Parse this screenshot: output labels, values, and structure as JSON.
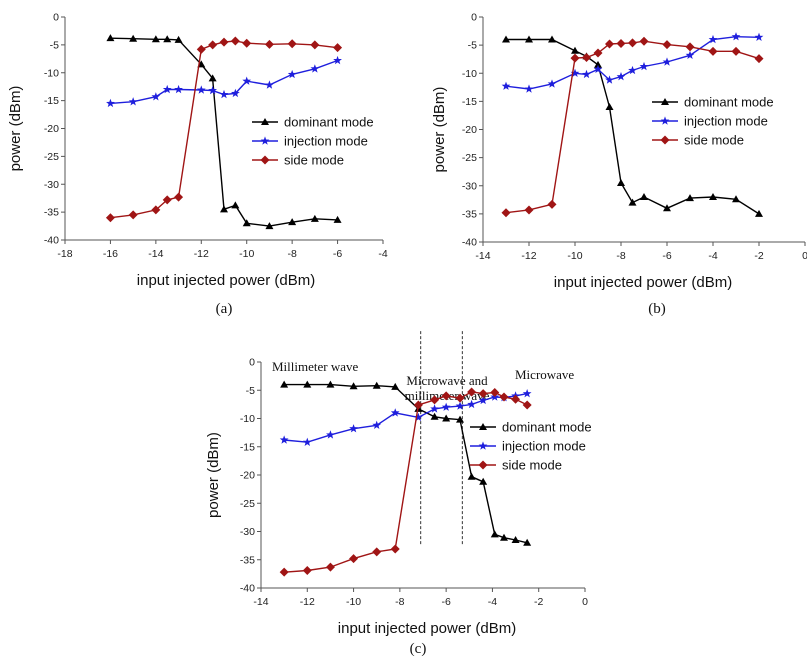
{
  "chart_data": [
    {
      "type": "line",
      "caption": "(a)",
      "xlabel": "input injected power (dBm)",
      "ylabel": "power (dBm)",
      "xlim": [
        -18,
        -4
      ],
      "ylim": [
        -40,
        0
      ],
      "xticks": [
        -18,
        -16,
        -14,
        -12,
        -10,
        -8,
        -6,
        -4
      ],
      "yticks": [
        0,
        -5,
        -10,
        -15,
        -20,
        -25,
        -30,
        -35,
        -40
      ],
      "legend_position": "center-right",
      "series": [
        {
          "name": "dominant mode",
          "color": "#000000",
          "marker": "triangle",
          "x": [
            -16,
            -15,
            -14,
            -13.5,
            -13,
            -12,
            -11.5,
            -11,
            -10.5,
            -10,
            -9,
            -8,
            -7,
            -6
          ],
          "y": [
            -3.8,
            -3.9,
            -4,
            -4,
            -4.1,
            -8.5,
            -11,
            -34.5,
            -33.8,
            -37,
            -37.5,
            -36.8,
            -36.2,
            -36.4
          ]
        },
        {
          "name": "injection mode",
          "color": "#1f1fdd",
          "marker": "star",
          "x": [
            -16,
            -15,
            -14,
            -13.5,
            -13,
            -12,
            -11.5,
            -11,
            -10.5,
            -10,
            -9,
            -8,
            -7,
            -6
          ],
          "y": [
            -15.5,
            -15.2,
            -14.3,
            -13,
            -13,
            -13.1,
            -13.2,
            -13.9,
            -13.7,
            -11.5,
            -12.2,
            -10.3,
            -9.3,
            -7.8
          ]
        },
        {
          "name": "side mode",
          "color": "#a01515",
          "marker": "diamond",
          "x": [
            -16,
            -15,
            -14,
            -13.5,
            -13,
            -12,
            -11.5,
            -11,
            -10.5,
            -10,
            -9,
            -8,
            -7,
            -6
          ],
          "y": [
            -36,
            -35.5,
            -34.6,
            -32.8,
            -32.3,
            -5.8,
            -5,
            -4.5,
            -4.3,
            -4.7,
            -4.9,
            -4.8,
            -5,
            -5.5
          ]
        }
      ]
    },
    {
      "type": "line",
      "caption": "(b)",
      "xlabel": "input injected power (dBm)",
      "ylabel": "power (dBm)",
      "xlim": [
        -14,
        0
      ],
      "ylim": [
        -40,
        0
      ],
      "xticks": [
        -14,
        -12,
        -10,
        -8,
        -6,
        -4,
        -2,
        0
      ],
      "yticks": [
        0,
        -5,
        -10,
        -15,
        -20,
        -25,
        -30,
        -35,
        -40
      ],
      "legend_position": "center-right",
      "series": [
        {
          "name": "dominant mode",
          "color": "#000000",
          "marker": "triangle",
          "x": [
            -13,
            -12,
            -11,
            -10,
            -9.5,
            -9,
            -8.5,
            -8,
            -7.5,
            -7,
            -6,
            -5,
            -4,
            -3,
            -2
          ],
          "y": [
            -4,
            -4,
            -4,
            -6,
            -7,
            -8.5,
            -16,
            -29.5,
            -33,
            -32,
            -34,
            -32.2,
            -32,
            -32.4,
            -35
          ]
        },
        {
          "name": "injection mode",
          "color": "#1f1fdd",
          "marker": "star",
          "x": [
            -13,
            -12,
            -11,
            -10,
            -9.5,
            -9,
            -8.5,
            -8,
            -7.5,
            -7,
            -6,
            -5,
            -4,
            -3,
            -2
          ],
          "y": [
            -12.3,
            -12.8,
            -11.9,
            -10,
            -10.2,
            -9.3,
            -11.2,
            -10.6,
            -9.5,
            -8.8,
            -8,
            -6.8,
            -4,
            -3.5,
            -3.6
          ]
        },
        {
          "name": "side mode",
          "color": "#a01515",
          "marker": "diamond",
          "x": [
            -13,
            -12,
            -11,
            -10,
            -9.5,
            -9,
            -8.5,
            -8,
            -7.5,
            -7,
            -6,
            -5,
            -4,
            -3,
            -2
          ],
          "y": [
            -34.8,
            -34.3,
            -33.3,
            -7.3,
            -7.2,
            -6.4,
            -4.8,
            -4.7,
            -4.6,
            -4.3,
            -4.9,
            -5.3,
            -6.1,
            -6.1,
            -7.4
          ]
        }
      ]
    },
    {
      "type": "line",
      "caption": "(c)",
      "xlabel": "input injected power (dBm)",
      "ylabel": "power (dBm)",
      "xlim": [
        -14,
        0
      ],
      "ylim": [
        -40,
        0
      ],
      "xticks": [
        -14,
        -12,
        -10,
        -8,
        -6,
        -4,
        -2,
        0
      ],
      "yticks": [
        0,
        -5,
        -10,
        -15,
        -20,
        -25,
        -30,
        -35,
        -40
      ],
      "legend_position": "center-right",
      "annotations": [
        {
          "text": "Millimeter wave"
        },
        {
          "text": "Microwave  and"
        },
        {
          "text": "millimeter wave"
        },
        {
          "text": "Microwave"
        }
      ],
      "region_boundaries_x": [
        -7.1,
        -5.3
      ],
      "series": [
        {
          "name": "dominant mode",
          "color": "#000000",
          "marker": "triangle",
          "x": [
            -13,
            -12,
            -11,
            -10,
            -9,
            -8.2,
            -7.2,
            -6.5,
            -6,
            -5.4,
            -4.9,
            -4.4,
            -3.9,
            -3.5,
            -3,
            -2.5
          ],
          "y": [
            -4,
            -4,
            -4,
            -4.3,
            -4.2,
            -4.4,
            -8.3,
            -9.7,
            -10,
            -10.2,
            -20.3,
            -21.2,
            -30.5,
            -31.1,
            -31.5,
            -32
          ]
        },
        {
          "name": "injection mode",
          "color": "#1f1fdd",
          "marker": "star",
          "x": [
            -13,
            -12,
            -11,
            -10,
            -9,
            -8.2,
            -7.2,
            -6.5,
            -6,
            -5.4,
            -4.9,
            -4.4,
            -3.9,
            -3.5,
            -3,
            -2.5
          ],
          "y": [
            -13.8,
            -14.2,
            -12.9,
            -11.8,
            -11.2,
            -9,
            -9.8,
            -8.3,
            -8,
            -7.8,
            -7.5,
            -6.8,
            -6.2,
            -6.3,
            -6,
            -5.6
          ]
        },
        {
          "name": "side mode",
          "color": "#a01515",
          "marker": "diamond",
          "x": [
            -13,
            -12,
            -11,
            -10,
            -9,
            -8.2,
            -7.2,
            -6.5,
            -6,
            -5.4,
            -4.9,
            -4.4,
            -3.9,
            -3.5,
            -3,
            -2.5
          ],
          "y": [
            -37.2,
            -36.9,
            -36.3,
            -34.8,
            -33.6,
            -33.1,
            -7.6,
            -6.7,
            -6,
            -6.4,
            -5.3,
            -5.6,
            -5.4,
            -6.2,
            -6.6,
            -7.6
          ]
        }
      ]
    }
  ]
}
